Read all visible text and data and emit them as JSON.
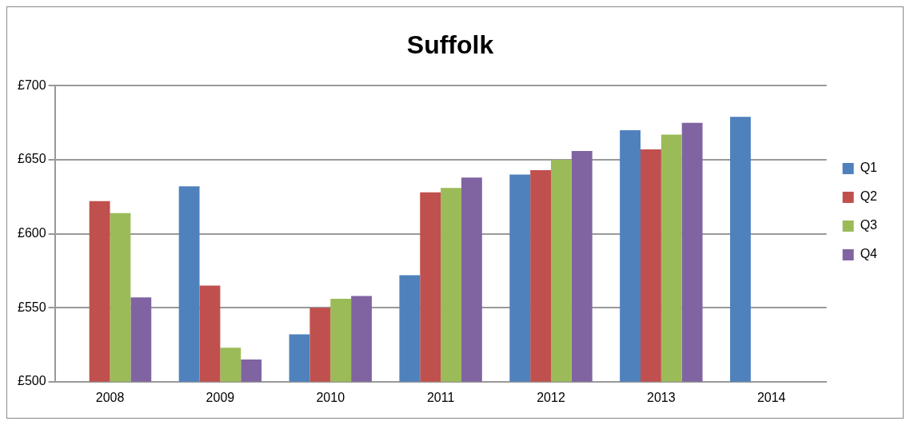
{
  "chart_data": {
    "type": "bar",
    "title": "Suffolk",
    "categories": [
      "2008",
      "2009",
      "2010",
      "2011",
      "2012",
      "2013",
      "2014"
    ],
    "series": [
      {
        "name": "Q1",
        "color": "#4f81bd",
        "values": [
          null,
          632,
          532,
          572,
          640,
          670,
          679
        ]
      },
      {
        "name": "Q2",
        "color": "#c0504d",
        "values": [
          622,
          565,
          550,
          628,
          643,
          657,
          null
        ]
      },
      {
        "name": "Q3",
        "color": "#9bbb59",
        "values": [
          614,
          523,
          556,
          631,
          650,
          667,
          null
        ]
      },
      {
        "name": "Q4",
        "color": "#8064a2",
        "values": [
          557,
          515,
          558,
          638,
          656,
          675,
          null
        ]
      }
    ],
    "ylim": [
      500,
      700
    ],
    "yticks": [
      {
        "value": 500,
        "label": "£500"
      },
      {
        "value": 550,
        "label": "£550"
      },
      {
        "value": 600,
        "label": "£600"
      },
      {
        "value": 650,
        "label": "£650"
      },
      {
        "value": 700,
        "label": "£700"
      }
    ],
    "grid": "y",
    "legend": "right"
  }
}
